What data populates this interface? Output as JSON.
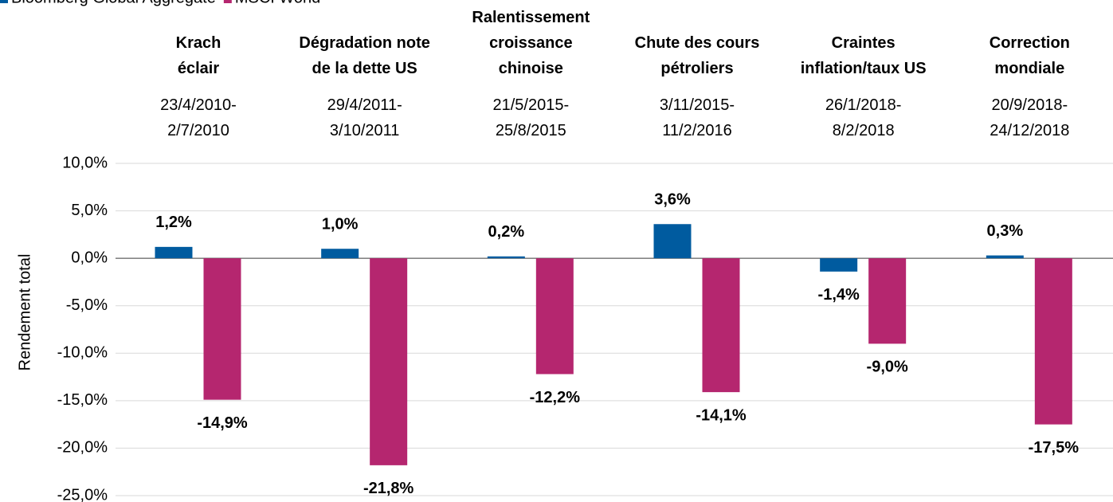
{
  "chart_data": {
    "type": "bar",
    "ylabel": "Rendement total",
    "categories": [
      "Krach\néclair",
      "Dégradation note\nde la dette US",
      "Ralentissement\ncroissance\nchinoise",
      "Chute des cours\npétroliers",
      "Craintes\ninflation/taux US",
      "Correction\nmondiale"
    ],
    "category_dates": [
      "23/4/2010-\n2/7/2010",
      "29/4/2011-\n3/10/2011",
      "21/5/2015-\n25/8/2015",
      "3/11/2015-\n11/2/2016",
      "26/1/2018-\n8/2/2018",
      "20/9/2018-\n24/12/2018"
    ],
    "series": [
      {
        "name": "Bloomberg Global Aggregate",
        "color": "#005b9f",
        "values": [
          1.2,
          1.0,
          0.2,
          3.6,
          -1.4,
          0.3
        ],
        "value_labels": [
          "1,2%",
          "1,0%",
          "0,2%",
          "3,6%",
          "-1,4%",
          "0,3%"
        ]
      },
      {
        "name": "MSCI World",
        "color": "#b5266f",
        "values": [
          -14.9,
          -21.8,
          -12.2,
          -14.1,
          -9.0,
          -17.5
        ],
        "value_labels": [
          "-14,9%",
          "-21,8%",
          "-12,2%",
          "-14,1%",
          "-9,0%",
          "-17,5%"
        ]
      }
    ],
    "ylim": [
      -25,
      10
    ],
    "yticks": [
      {
        "value": 10,
        "label": "10,0%"
      },
      {
        "value": 5,
        "label": "5,0%"
      },
      {
        "value": 0,
        "label": "0,0%"
      },
      {
        "value": -5,
        "label": "-5,0%"
      },
      {
        "value": -10,
        "label": "-10,0%"
      },
      {
        "value": -15,
        "label": "-15,0%"
      },
      {
        "value": -20,
        "label": "-20,0%"
      },
      {
        "value": -25,
        "label": "-25,0%"
      }
    ],
    "grid": true
  }
}
